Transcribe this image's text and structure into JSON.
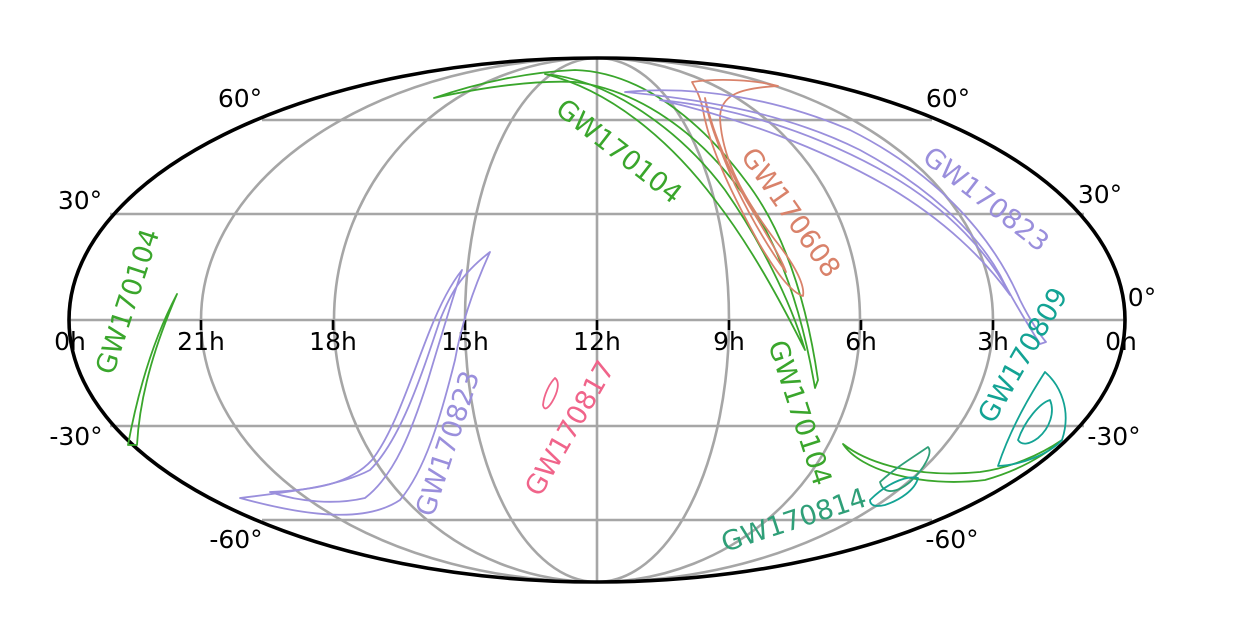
{
  "projection": "mollweide",
  "grid": true,
  "ra_labels": [
    "0h",
    "21h",
    "18h",
    "15h",
    "12h",
    "9h",
    "6h",
    "3h",
    "0h"
  ],
  "dec_labels": {
    "left_60": "60°",
    "right_60": "60°",
    "left_30": "30°",
    "right_30": "30°",
    "right_0": "0°",
    "left_m30": "-30°",
    "right_m30": "-30°",
    "left_m60": "-60°",
    "right_m60": "-60°"
  },
  "colors": {
    "GW170104": "#3aa62c",
    "GW170608": "#d9826a",
    "GW170823": "#9a8fdc",
    "GW170817": "#f0648a",
    "GW170814": "#2f9f78",
    "GW170809": "#13a394",
    "grid": "#a6a6a6",
    "frame": "#000000"
  },
  "events": [
    {
      "id": "GW170104",
      "label_north": "GW170104",
      "label_mid": "GW170104",
      "label_left": "GW170104"
    },
    {
      "id": "GW170608",
      "label": "GW170608"
    },
    {
      "id": "GW170823",
      "label_north": "GW170823",
      "label_south": "GW170823"
    },
    {
      "id": "GW170817",
      "label": "GW170817"
    },
    {
      "id": "GW170814",
      "label": "GW170814"
    },
    {
      "id": "GW170809",
      "label": "GW170809"
    }
  ]
}
